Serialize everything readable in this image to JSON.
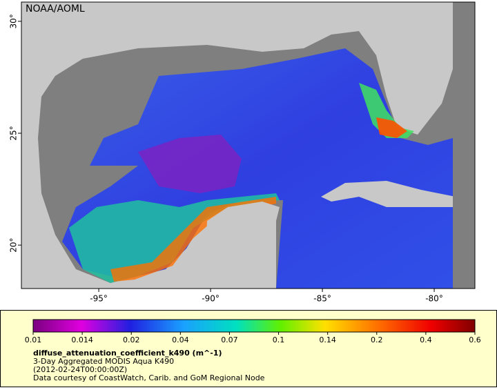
{
  "map": {
    "credit": "NOAA/AOML",
    "xlim": [
      -98.46,
      -78.18
    ],
    "ylim": [
      18.06,
      30.86
    ],
    "xticks": [
      {
        "value": -95,
        "label": "-95°"
      },
      {
        "value": -90,
        "label": "-90°"
      },
      {
        "value": -85,
        "label": "-85°"
      },
      {
        "value": -80,
        "label": "-80°"
      }
    ],
    "yticks": [
      {
        "value": 30,
        "label": "30°"
      },
      {
        "value": 25,
        "label": "25°"
      },
      {
        "value": 20,
        "label": "20°"
      }
    ]
  },
  "legend": {
    "ticks": [
      0.01,
      0.014,
      0.02,
      0.04,
      0.07,
      0.1,
      0.14,
      0.2,
      0.4,
      0.6
    ],
    "variable": "diffuse_attenuation_coefficient_k490 (m^-1)",
    "product": "3-Day Aggregated MODIS Aqua K490",
    "time": "(2012-02-24T00:00:00Z)",
    "courtesy": "Data courtesy of CoastWatch, Carib. and GoM Regional Node"
  }
}
